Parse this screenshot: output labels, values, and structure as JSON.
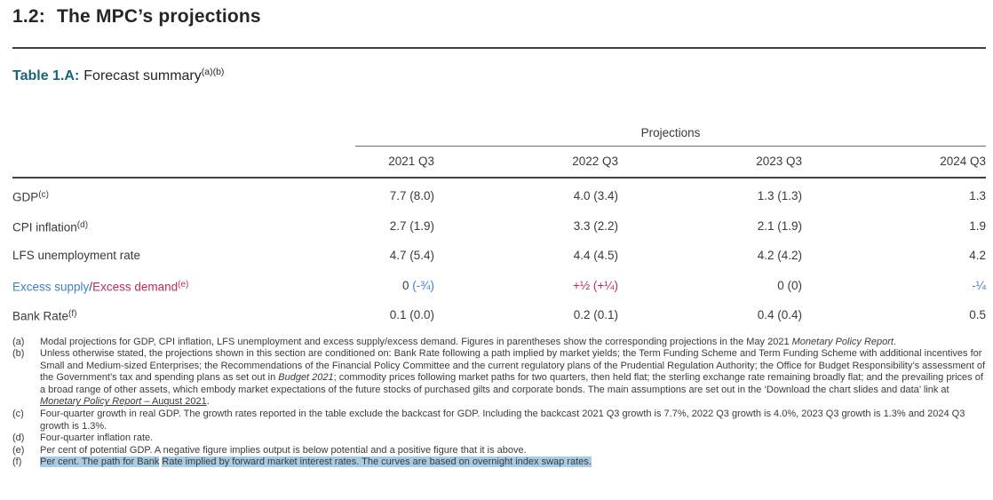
{
  "header": {
    "section_number": "1.2:",
    "section_name": "The MPC’s projections"
  },
  "table": {
    "title_label": "Table 1.A:",
    "title_text": "Forecast summary",
    "title_sup": "(a)(b)",
    "projections_header": "Projections",
    "columns": [
      "2021 Q3",
      "2022 Q3",
      "2023 Q3",
      "2024 Q3"
    ],
    "rows": [
      {
        "label": [
          {
            "t": "GDP"
          },
          {
            "t": "(c)",
            "sup": true
          }
        ],
        "values": [
          [
            {
              "t": "7.7 (8.0)"
            }
          ],
          [
            {
              "t": "4.0 (3.4)"
            }
          ],
          [
            {
              "t": "1.3 (1.3)"
            }
          ],
          [
            {
              "t": "1.3"
            }
          ]
        ]
      },
      {
        "label": [
          {
            "t": "CPI inflation"
          },
          {
            "t": "(d)",
            "sup": true
          }
        ],
        "values": [
          [
            {
              "t": "2.7 (1.9)"
            }
          ],
          [
            {
              "t": "3.3 (2.2)"
            }
          ],
          [
            {
              "t": "2.1 (1.9)"
            }
          ],
          [
            {
              "t": "1.9"
            }
          ]
        ]
      },
      {
        "label": [
          {
            "t": "LFS unemployment rate"
          }
        ],
        "values": [
          [
            {
              "t": "4.7 (5.4)"
            }
          ],
          [
            {
              "t": "4.4 (4.5)"
            }
          ],
          [
            {
              "t": "4.2 (4.2)"
            }
          ],
          [
            {
              "t": "4.2"
            }
          ]
        ]
      },
      {
        "label": [
          {
            "t": "Excess supply",
            "c": "blue"
          },
          {
            "t": "/"
          },
          {
            "t": "Excess demand",
            "c": "red"
          },
          {
            "t": "(e)",
            "sup": true,
            "c": "red"
          }
        ],
        "values": [
          [
            {
              "t": "0 "
            },
            {
              "t": "(-¾)",
              "c": "blue"
            }
          ],
          [
            {
              "t": "+½ (+¼)",
              "c": "red"
            }
          ],
          [
            {
              "t": "0 (0)"
            }
          ],
          [
            {
              "t": "-¼",
              "c": "blue"
            }
          ]
        ]
      },
      {
        "label": [
          {
            "t": "Bank Rate"
          },
          {
            "t": "(f)",
            "sup": true
          }
        ],
        "values": [
          [
            {
              "t": "0.1 (0.0)"
            }
          ],
          [
            {
              "t": "0.2 (0.1)"
            }
          ],
          [
            {
              "t": "0.4 (0.4)"
            }
          ],
          [
            {
              "t": "0.5"
            }
          ]
        ]
      }
    ]
  },
  "footnotes": [
    {
      "marker": "(a)",
      "segments": [
        {
          "t": "Modal projections for GDP, CPI inflation, LFS unemployment and excess supply/excess demand. Figures in parentheses show the corresponding projections in the May 2021 "
        },
        {
          "t": "Monetary Policy Report",
          "i": true
        },
        {
          "t": "."
        }
      ]
    },
    {
      "marker": "(b)",
      "segments": [
        {
          "t": "Unless otherwise stated, the projections shown in this section are conditioned on: Bank Rate following a path implied by market yields; the Term Funding Scheme and Term Funding Scheme with additional incentives for Small and Medium-sized Enterprises; the Recommendations of the Financial Policy Committee and the current regulatory plans of the Prudential Regulation Authority; the Office for Budget Responsibility’s assessment of the Government’s tax and spending plans as set out in "
        },
        {
          "t": "Budget 2021",
          "i": true
        },
        {
          "t": "; commodity prices following market paths for two quarters, then held flat; the sterling exchange rate remaining broadly flat; and the prevailing prices of a broad range of other assets, which embody market expectations of the future stocks of purchased gilts and corporate bonds. The main assumptions are set out in the ‘Download the chart slides and data’ link at "
        },
        {
          "t": "Monetary Policy Report",
          "i": true,
          "u": true,
          "link": true
        },
        {
          "t": " – August 2021",
          "u": true,
          "link": true
        },
        {
          "t": "."
        }
      ]
    },
    {
      "marker": "(c)",
      "segments": [
        {
          "t": "Four-quarter growth in real GDP. The growth rates reported in the table exclude the backcast for GDP. Including the backcast 2021 Q3 growth is 7.7%, 2022 Q3 growth is 4.0%, 2023 Q3 growth is 1.3% and 2024 Q3 growth is 1.3%."
        }
      ]
    },
    {
      "marker": "(d)",
      "segments": [
        {
          "t": "Four-quarter inflation rate."
        }
      ]
    },
    {
      "marker": "(e)",
      "segments": [
        {
          "t": "Per cent of potential GDP. A negative figure implies output is below potential and a positive figure that it is above."
        }
      ]
    },
    {
      "marker": "(f)",
      "segments": [
        {
          "t": "Per cent. The path for Bank",
          "hl": true
        },
        {
          "t": " "
        },
        {
          "t": "Rate implied by forward market interest rates. The curves are based on overnight index swap rates.",
          "hl": true
        }
      ]
    }
  ],
  "colors": {
    "teal": "#17657d",
    "blue": "#4080c0",
    "red": "#bf2a62",
    "selection_highlight": "#a9cbe3",
    "text_dark": "#262626",
    "text_body": "#3a3a3a",
    "rule_dark": "#414141",
    "rule_light": "#6e6e6e"
  }
}
